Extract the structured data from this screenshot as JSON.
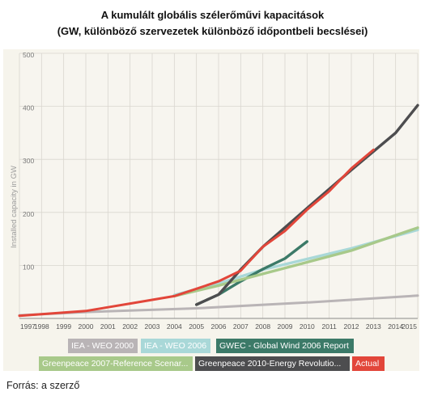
{
  "title_line1": "A kumulált globális szélerőművi kapacitások",
  "title_line2": "(GW, különböző szervezetek különböző időpontbeli becslései)",
  "source": "Forrás: a szerző",
  "chart_data": {
    "type": "line",
    "ylabel": "Installed capacity in GW",
    "ylim": [
      0,
      500
    ],
    "y_ticks": [
      "500",
      "400",
      "300",
      "200",
      "100"
    ],
    "x_ticks": [
      "1997",
      "1998",
      "1999",
      "2000",
      "2001",
      "2002",
      "2003",
      "2004",
      "2005",
      "2006",
      "2007",
      "2008",
      "2009",
      "2010",
      "2011",
      "2012",
      "2013",
      "2014",
      "2015"
    ],
    "grid": true,
    "legend_position": "bottom",
    "series": [
      {
        "name": "IEA - WEO 2000",
        "color": "#b9b4b6",
        "points": [
          [
            1997,
            6
          ],
          [
            2000,
            12
          ],
          [
            2005,
            19
          ],
          [
            2010,
            30
          ],
          [
            2015,
            43
          ]
        ]
      },
      {
        "name": "IEA - WEO 2006",
        "color": "#a9d8d8",
        "points": [
          [
            2004,
            44
          ],
          [
            2006,
            66
          ],
          [
            2008,
            92
          ],
          [
            2010,
            112
          ],
          [
            2012,
            132
          ],
          [
            2015,
            167
          ]
        ]
      },
      {
        "name": "GWEC - Global Wind 2006 Report",
        "color": "#3c7a68",
        "points": [
          [
            2005,
            26
          ],
          [
            2006,
            45
          ],
          [
            2007,
            70
          ],
          [
            2008,
            93
          ],
          [
            2009,
            113
          ],
          [
            2010,
            145
          ]
        ]
      },
      {
        "name": "Greenpeace 2007-Reference Scenar...",
        "color": "#a8c98a",
        "points": [
          [
            2004,
            42
          ],
          [
            2006,
            62
          ],
          [
            2008,
            84
          ],
          [
            2010,
            106
          ],
          [
            2012,
            128
          ],
          [
            2015,
            171
          ]
        ]
      },
      {
        "name": "Greenpeace 2010-Energy Revolutio...",
        "color": "#4d4d4f",
        "points": [
          [
            2005,
            26
          ],
          [
            2006,
            45
          ],
          [
            2007,
            92
          ],
          [
            2008,
            135
          ],
          [
            2010,
            208
          ],
          [
            2012,
            280
          ],
          [
            2014,
            350
          ],
          [
            2015,
            402
          ]
        ]
      },
      {
        "name": "Actual",
        "color": "#e2463a",
        "points": [
          [
            1997,
            5
          ],
          [
            1998,
            8
          ],
          [
            1999,
            11
          ],
          [
            2000,
            14
          ],
          [
            2001,
            21
          ],
          [
            2002,
            28
          ],
          [
            2003,
            35
          ],
          [
            2004,
            42
          ],
          [
            2005,
            56
          ],
          [
            2006,
            70
          ],
          [
            2007,
            90
          ],
          [
            2008,
            135
          ],
          [
            2009,
            165
          ],
          [
            2010,
            205
          ],
          [
            2011,
            240
          ],
          [
            2012,
            283
          ],
          [
            2013,
            318
          ]
        ]
      }
    ]
  }
}
